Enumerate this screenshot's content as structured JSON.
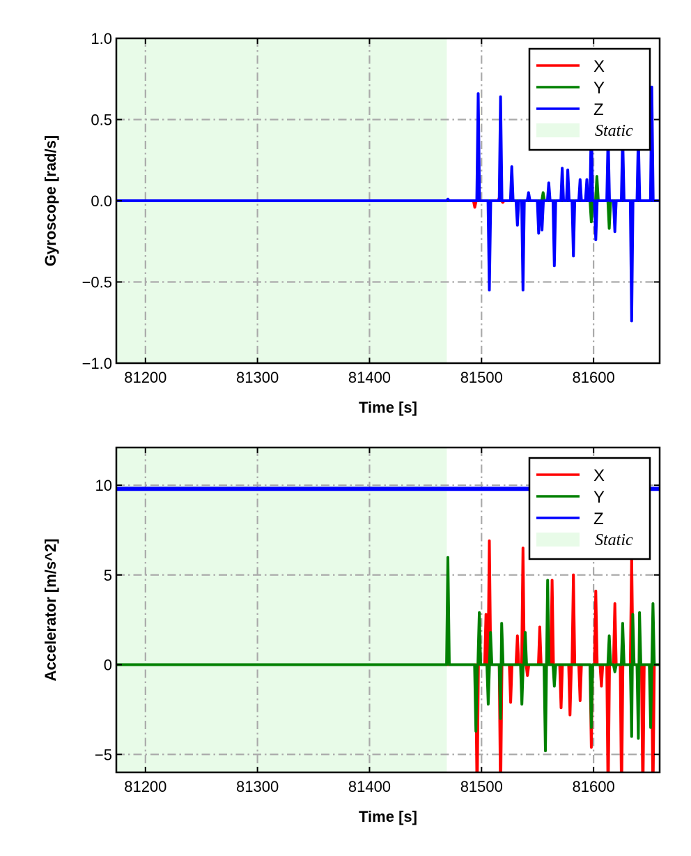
{
  "chart_data": [
    {
      "type": "line",
      "title": "",
      "xlabel": "Time [s]",
      "ylabel": "Gyroscope [rad/s]",
      "xlim": [
        81174,
        81659
      ],
      "ylim": [
        -1.0,
        1.0
      ],
      "xticks": [
        81200,
        81300,
        81400,
        81500,
        81600
      ],
      "xtick_labels": [
        "81200",
        "81300",
        "81400",
        "81500",
        "81600"
      ],
      "yticks": [
        -1.0,
        -0.5,
        0.0,
        0.5,
        1.0
      ],
      "ytick_labels": [
        "−1.0",
        "−0.5",
        "0.0",
        "0.5",
        "1.0"
      ],
      "grid": true,
      "legend_position": "top-right",
      "static_region": {
        "label": "Static",
        "x": [
          81174,
          81469
        ],
        "color": "#e8fbe8"
      },
      "series": [
        {
          "name": "X",
          "color": "#ff0000",
          "baseline": 0.0,
          "peaks": [
            [
              81494,
              -0.04
            ],
            [
              81516,
              0.02
            ],
            [
              81519,
              -0.01
            ]
          ]
        },
        {
          "name": "Y",
          "color": "#008000",
          "baseline": 0.0,
          "peaks": [
            [
              81555,
              0.05
            ],
            [
              81598,
              -0.13
            ],
            [
              81603,
              0.15
            ],
            [
              81614,
              -0.17
            ]
          ]
        },
        {
          "name": "Z",
          "color": "#0000ff",
          "baseline": 0.0,
          "peaks": [
            [
              81470,
              0.01
            ],
            [
              81497,
              0.66
            ],
            [
              81507,
              -0.55
            ],
            [
              81517,
              0.64
            ],
            [
              81527,
              0.21
            ],
            [
              81532,
              -0.15
            ],
            [
              81537,
              -0.55
            ],
            [
              81542,
              0.05
            ],
            [
              81551,
              -0.2
            ],
            [
              81554,
              -0.18
            ],
            [
              81560,
              0.11
            ],
            [
              81565,
              -0.4
            ],
            [
              81572,
              0.2
            ],
            [
              81577,
              0.19
            ],
            [
              81582,
              -0.34
            ],
            [
              81588,
              0.13
            ],
            [
              81594,
              0.13
            ],
            [
              81598,
              0.5
            ],
            [
              81602,
              -0.24
            ],
            [
              81613,
              0.4
            ],
            [
              81619,
              -0.19
            ],
            [
              81626,
              0.4
            ],
            [
              81634,
              -0.74
            ],
            [
              81640,
              0.4
            ],
            [
              81652,
              0.7
            ]
          ]
        }
      ]
    },
    {
      "type": "line",
      "title": "",
      "xlabel": "Time [s]",
      "ylabel": "Accelerator [m/s^2]",
      "xlim": [
        81174,
        81659
      ],
      "ylim": [
        -6.0,
        12.1
      ],
      "xticks": [
        81200,
        81300,
        81400,
        81500,
        81600
      ],
      "xtick_labels": [
        "81200",
        "81300",
        "81400",
        "81500",
        "81600"
      ],
      "yticks": [
        -5,
        0,
        5,
        10
      ],
      "ytick_labels": [
        "−5",
        "0",
        "5",
        "10"
      ],
      "grid": true,
      "legend_position": "top-right",
      "static_region": {
        "label": "Static",
        "x": [
          81174,
          81469
        ],
        "color": "#e8fbe8"
      },
      "series": [
        {
          "name": "X",
          "color": "#ff0000",
          "baseline": 0.0,
          "peaks": [
            [
              81496,
              -7.5
            ],
            [
              81504,
              2.8
            ],
            [
              81507,
              6.9
            ],
            [
              81517,
              -7.5
            ],
            [
              81526,
              -2.1
            ],
            [
              81532,
              1.6
            ],
            [
              81537,
              6.5
            ],
            [
              81541,
              -0.6
            ],
            [
              81552,
              2.1
            ],
            [
              81563,
              4.7
            ],
            [
              81571,
              -2.4
            ],
            [
              81579,
              -2.8
            ],
            [
              81582,
              5.0
            ],
            [
              81588,
              -2.0
            ],
            [
              81598,
              -4.6
            ],
            [
              81602,
              4.1
            ],
            [
              81607,
              -1.2
            ],
            [
              81613,
              -7.5
            ],
            [
              81619,
              3.4
            ],
            [
              81625,
              -7.5
            ],
            [
              81634,
              6.0
            ],
            [
              81644,
              -7.5
            ],
            [
              81653,
              -7.5
            ]
          ]
        },
        {
          "name": "Y",
          "color": "#008000",
          "baseline": 0.0,
          "peaks": [
            [
              81470,
              5.97
            ],
            [
              81495,
              -3.7
            ],
            [
              81498,
              2.9
            ],
            [
              81506,
              -2.2
            ],
            [
              81508,
              1.8
            ],
            [
              81517,
              -3.0
            ],
            [
              81518,
              2.3
            ],
            [
              81536,
              -2.2
            ],
            [
              81539,
              1.8
            ],
            [
              81557,
              -4.8
            ],
            [
              81559,
              4.7
            ],
            [
              81565,
              -1.2
            ],
            [
              81598,
              -3.5
            ],
            [
              81614,
              1.6
            ],
            [
              81619,
              -0.4
            ],
            [
              81626,
              2.3
            ],
            [
              81634,
              -4.0
            ],
            [
              81635,
              2.8
            ],
            [
              81640,
              -4.1
            ],
            [
              81641,
              2.9
            ],
            [
              81651,
              -3.5
            ],
            [
              81653,
              3.4
            ]
          ]
        },
        {
          "name": "Z",
          "color": "#0000ff",
          "baseline": 9.8,
          "peaks": []
        }
      ]
    }
  ]
}
